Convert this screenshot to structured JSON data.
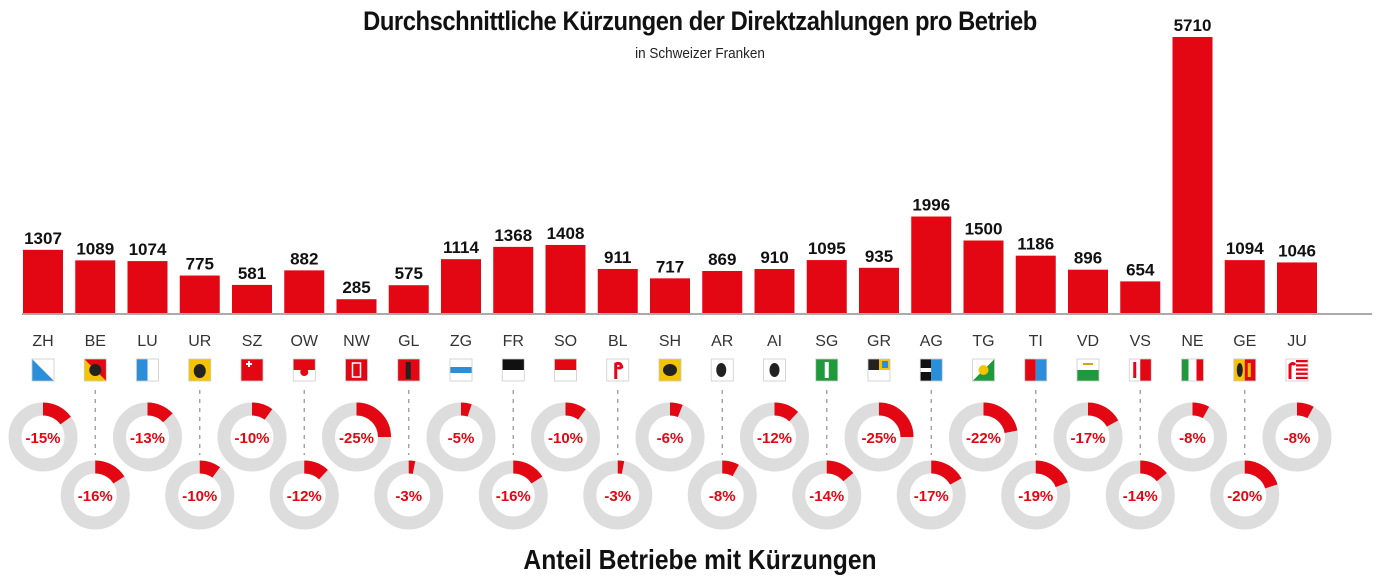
{
  "chart_data": {
    "type": "bar",
    "title": "Durchschnittliche Kürzungen der Direktzahlungen pro Betrieb",
    "subtitle": "in Schweizer Franken",
    "bottom_title": "Anteil Betriebe mit Kürzungen",
    "categories": [
      "ZH",
      "BE",
      "LU",
      "UR",
      "SZ",
      "OW",
      "NW",
      "GL",
      "ZG",
      "FR",
      "SO",
      "BL",
      "SH",
      "AR",
      "AI",
      "SG",
      "GR",
      "AG",
      "TG",
      "TI",
      "VD",
      "VS",
      "NE",
      "GE",
      "JU"
    ],
    "values": [
      1307,
      1089,
      1074,
      775,
      581,
      882,
      285,
      575,
      1114,
      1368,
      1408,
      911,
      717,
      869,
      910,
      1095,
      935,
      1996,
      1500,
      1186,
      896,
      654,
      5710,
      1094,
      1046
    ],
    "share_labels": [
      "-15%",
      "-16%",
      "-13%",
      "-10%",
      "-10%",
      "-12%",
      "-25%",
      "-3%",
      "-5%",
      "-16%",
      "-10%",
      "-3%",
      "-6%",
      "-8%",
      "-12%",
      "-14%",
      "-25%",
      "-17%",
      "-22%",
      "-19%",
      "-17%",
      "-14%",
      "-8%",
      "-20%",
      "-8%"
    ],
    "share_values": [
      15,
      16,
      13,
      10,
      10,
      12,
      25,
      3,
      5,
      16,
      10,
      3,
      6,
      8,
      12,
      14,
      25,
      17,
      22,
      19,
      17,
      14,
      8,
      20,
      8
    ],
    "ylim": [
      0,
      5710
    ],
    "grid": false,
    "legend": "none",
    "colors": {
      "bar": "#e30613",
      "ring": "#dddddd",
      "text": "#111111",
      "share_text": "#e30613"
    },
    "flag_icons": [
      "flag-zh",
      "flag-be",
      "flag-lu",
      "flag-ur",
      "flag-sz",
      "flag-ow",
      "flag-nw",
      "flag-gl",
      "flag-zg",
      "flag-fr",
      "flag-so",
      "flag-bl",
      "flag-sh",
      "flag-ar",
      "flag-ai",
      "flag-sg",
      "flag-gr",
      "flag-ag",
      "flag-tg",
      "flag-ti",
      "flag-vd",
      "flag-vs",
      "flag-ne",
      "flag-ge",
      "flag-ju"
    ]
  }
}
